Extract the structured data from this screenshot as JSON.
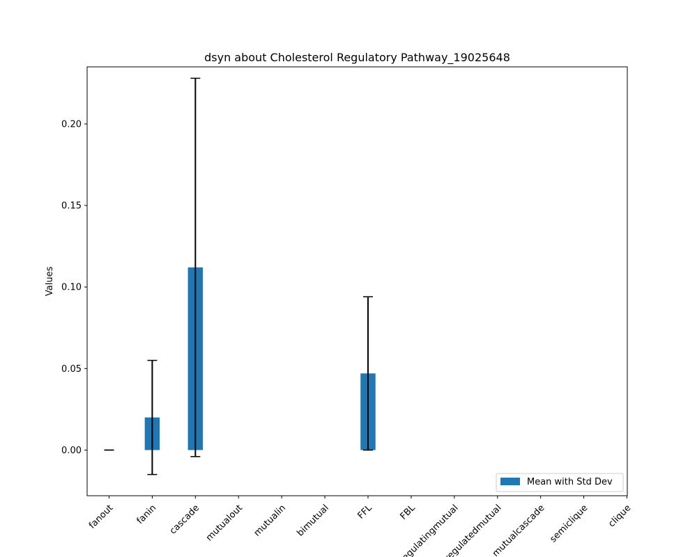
{
  "chart_data": {
    "type": "bar",
    "title": "dsyn about Cholesterol Regulatory Pathway_19025648",
    "xlabel": "",
    "ylabel": "Values",
    "categories": [
      "fanout",
      "fanin",
      "cascade",
      "mutualout",
      "mutualin",
      "bimutual",
      "FFL",
      "FBL",
      "regulatingmutual",
      "regulatedmutual",
      "mutualcascade",
      "semiclique",
      "clique"
    ],
    "series": [
      {
        "name": "Mean with Std Dev",
        "values": [
          0.0,
          0.02,
          0.112,
          0,
          0,
          0,
          0.047,
          0,
          0,
          0,
          0,
          0,
          0
        ],
        "errors": [
          0.0,
          0.035,
          0.116,
          null,
          null,
          null,
          0.047,
          null,
          null,
          null,
          null,
          null,
          null
        ]
      }
    ],
    "ylim": [
      -0.028,
      0.235
    ],
    "yticks": [
      "0.00",
      "0.05",
      "0.10",
      "0.15",
      "0.20"
    ],
    "ytick_values": [
      0.0,
      0.05,
      0.1,
      0.15,
      0.2
    ],
    "legend_placement": "lower-right",
    "grid": false,
    "bar_color": "#1f77b4",
    "error_color": "#000000"
  }
}
